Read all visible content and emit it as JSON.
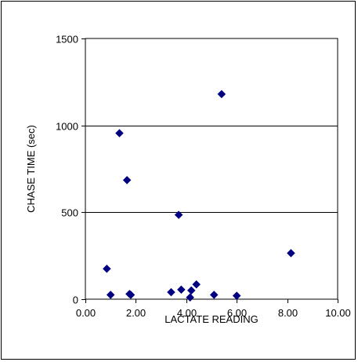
{
  "chart_data": {
    "type": "scatter",
    "title": "",
    "xlabel": "LACTATE READING",
    "ylabel": "CHASE TIME (sec)",
    "xlim": [
      0,
      10
    ],
    "ylim": [
      0,
      1500
    ],
    "x_ticks": [
      0,
      2,
      4,
      6,
      8,
      10
    ],
    "x_tick_labels": [
      "0.00",
      "2.00",
      "4.00",
      "6.00",
      "8.00",
      "10.00"
    ],
    "y_ticks": [
      0,
      500,
      1000,
      1500
    ],
    "y_tick_labels": [
      "0",
      "500",
      "1000",
      "1500"
    ],
    "grid": "horizontal",
    "legend": "none",
    "marker": "diamond",
    "marker_color": "#000080",
    "series": [
      {
        "x": [
          0.85,
          1.0,
          1.35,
          1.65,
          1.75,
          1.8,
          3.4,
          3.7,
          3.8,
          4.15,
          4.2,
          4.4,
          5.1,
          5.4,
          6.0,
          8.15
        ],
        "y": [
          175,
          25,
          955,
          685,
          30,
          25,
          40,
          485,
          55,
          10,
          50,
          85,
          25,
          1180,
          20,
          265
        ]
      }
    ]
  }
}
